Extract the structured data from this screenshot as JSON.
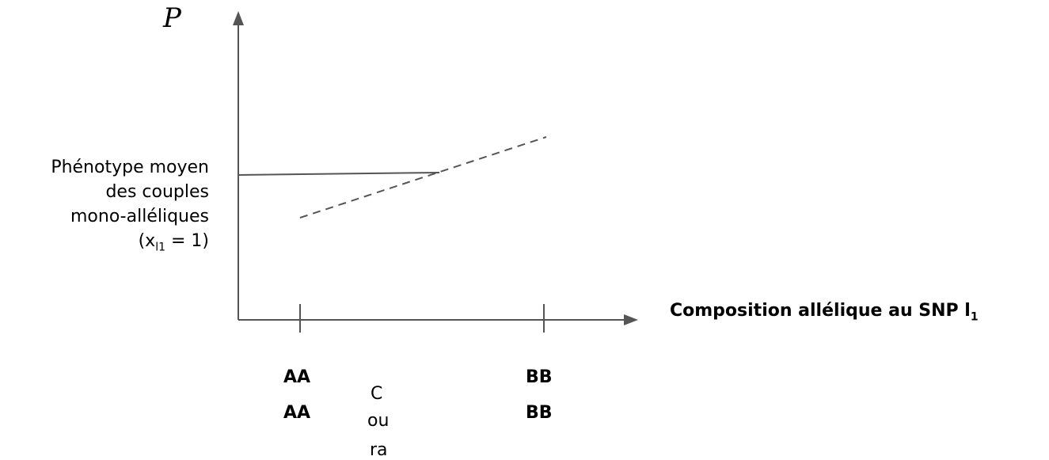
{
  "y_axis_symbol": "P",
  "y_label": {
    "line1": "Phénotype moyen",
    "line2": "des couples",
    "line3": "mono-alléliques",
    "line4_pre": "(x",
    "line4_sub": "l1",
    "line4_post": " = 1)"
  },
  "x_label": {
    "text": "Composition allélique au SNP l",
    "sub": "1"
  },
  "genotypes": {
    "left_top": "AA",
    "left_bottom": "AA",
    "right_top": "BB",
    "right_bottom": "BB",
    "middle_1": "C",
    "middle_2": "ou",
    "middle_3": "ra"
  }
}
